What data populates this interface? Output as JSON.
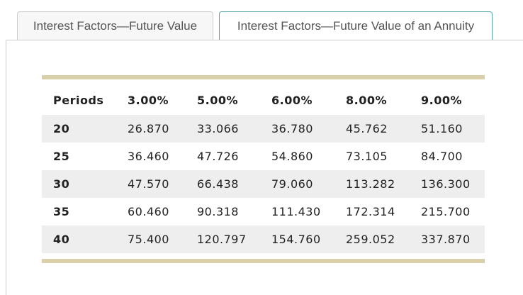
{
  "tabs": [
    "Interest Factors—Future Value",
    "Interest Factors—Future Value of an Annuity"
  ],
  "table": {
    "header": [
      "Periods",
      "3.00%",
      "5.00%",
      "6.00%",
      "8.00%",
      "9.00%"
    ],
    "rows": [
      [
        "20",
        "26.870",
        "33.066",
        "36.780",
        "45.762",
        "51.160"
      ],
      [
        "25",
        "36.460",
        "47.726",
        "54.860",
        "73.105",
        "84.700"
      ],
      [
        "30",
        "47.570",
        "66.438",
        "79.060",
        "113.282",
        "136.300"
      ],
      [
        "35",
        "60.460",
        "90.318",
        "111.430",
        "172.314",
        "215.700"
      ],
      [
        "40",
        "75.400",
        "120.797",
        "154.760",
        "259.052",
        "337.870"
      ]
    ]
  }
}
